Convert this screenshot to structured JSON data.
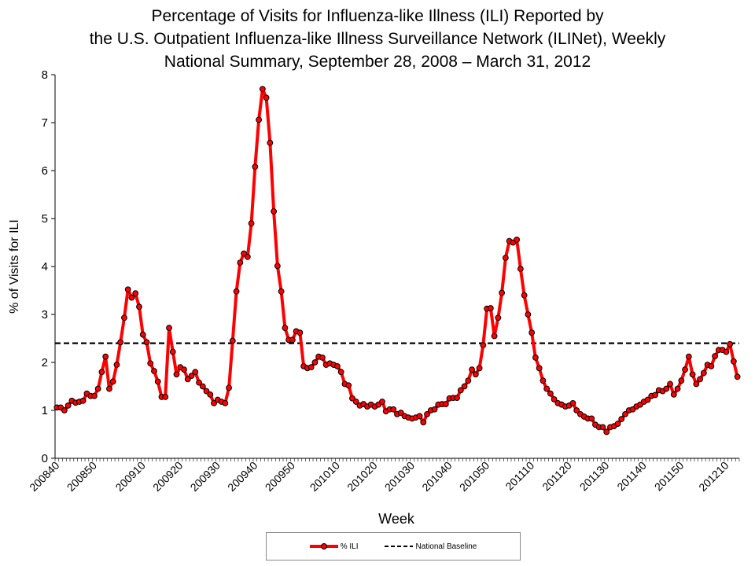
{
  "chart_data": {
    "type": "line",
    "title": [
      "Percentage of Visits for Influenza-like Illness (ILI) Reported by",
      "the U.S. Outpatient Influenza-like Illness Surveillance Network (ILINet), Weekly",
      "National Summary, September 28, 2008 – March 31, 2012"
    ],
    "xlabel": "Week",
    "ylabel": "% of Visits for ILI",
    "ylim": [
      0,
      8
    ],
    "yticks": [
      "0",
      "1",
      "2",
      "3",
      "4",
      "5",
      "6",
      "7",
      "8"
    ],
    "xtick_labels": [
      "200840",
      "200850",
      "200910",
      "200920",
      "200930",
      "200940",
      "200950",
      "201010",
      "201020",
      "201030",
      "201040",
      "201050",
      "201110",
      "201120",
      "201130",
      "201140",
      "201150",
      "201210"
    ],
    "grid": false,
    "legend_placement": "bottom",
    "weeks": [
      "200840",
      "200841",
      "200842",
      "200843",
      "200844",
      "200845",
      "200846",
      "200847",
      "200848",
      "200849",
      "200850",
      "200851",
      "200852",
      "200853",
      "200901",
      "200902",
      "200903",
      "200904",
      "200905",
      "200906",
      "200907",
      "200908",
      "200909",
      "200910",
      "200911",
      "200912",
      "200913",
      "200914",
      "200915",
      "200916",
      "200917",
      "200918",
      "200919",
      "200920",
      "200921",
      "200922",
      "200923",
      "200924",
      "200925",
      "200926",
      "200927",
      "200928",
      "200929",
      "200930",
      "200931",
      "200932",
      "200933",
      "200934",
      "200935",
      "200936",
      "200937",
      "200938",
      "200939",
      "200940",
      "200941",
      "200942",
      "200943",
      "200944",
      "200945",
      "200946",
      "200947",
      "200948",
      "200949",
      "200950",
      "200951",
      "200952",
      "201001",
      "201002",
      "201003",
      "201004",
      "201005",
      "201006",
      "201007",
      "201008",
      "201009",
      "201010",
      "201011",
      "201012",
      "201013",
      "201014",
      "201015",
      "201016",
      "201017",
      "201018",
      "201019",
      "201020",
      "201021",
      "201022",
      "201023",
      "201024",
      "201025",
      "201026",
      "201027",
      "201028",
      "201029",
      "201030",
      "201031",
      "201032",
      "201033",
      "201034",
      "201035",
      "201036",
      "201037",
      "201038",
      "201039",
      "201040",
      "201041",
      "201042",
      "201043",
      "201044",
      "201045",
      "201046",
      "201047",
      "201048",
      "201049",
      "201050",
      "201051",
      "201052",
      "201101",
      "201102",
      "201103",
      "201104",
      "201105",
      "201106",
      "201107",
      "201108",
      "201109",
      "201110",
      "201111",
      "201112",
      "201113",
      "201114",
      "201115",
      "201116",
      "201117",
      "201118",
      "201119",
      "201120",
      "201121",
      "201122",
      "201123",
      "201124",
      "201125",
      "201126",
      "201127",
      "201128",
      "201129",
      "201130",
      "201131",
      "201132",
      "201133",
      "201134",
      "201135",
      "201136",
      "201137",
      "201138",
      "201139",
      "201140",
      "201141",
      "201142",
      "201143",
      "201144",
      "201145",
      "201146",
      "201147",
      "201148",
      "201149",
      "201150",
      "201151",
      "201152",
      "201201",
      "201202",
      "201203",
      "201204",
      "201205",
      "201206",
      "201207",
      "201208",
      "201209",
      "201210",
      "201211",
      "201212",
      "201213"
    ],
    "series": [
      {
        "name": "% ILI",
        "color": "#ff0000",
        "marker_color": "#ff0000",
        "values": [
          1.06,
          1.06,
          1.0,
          1.1,
          1.2,
          1.16,
          1.18,
          1.2,
          1.35,
          1.3,
          1.3,
          1.45,
          1.8,
          2.12,
          1.45,
          1.6,
          1.95,
          2.42,
          2.93,
          3.52,
          3.35,
          3.44,
          3.16,
          2.58,
          2.42,
          1.98,
          1.82,
          1.6,
          1.28,
          1.28,
          2.72,
          2.22,
          1.75,
          1.9,
          1.85,
          1.65,
          1.72,
          1.8,
          1.58,
          1.5,
          1.4,
          1.33,
          1.15,
          1.22,
          1.18,
          1.15,
          1.47,
          2.45,
          3.48,
          4.08,
          4.27,
          4.2,
          4.9,
          6.08,
          7.06,
          7.7,
          7.52,
          6.58,
          5.15,
          4.01,
          3.48,
          2.72,
          2.47,
          2.47,
          2.65,
          2.62,
          1.92,
          1.88,
          1.9,
          2.0,
          2.12,
          2.1,
          1.95,
          1.98,
          1.95,
          1.92,
          1.8,
          1.55,
          1.52,
          1.25,
          1.18,
          1.1,
          1.13,
          1.08,
          1.12,
          1.08,
          1.12,
          1.18,
          0.98,
          1.02,
          1.02,
          0.92,
          0.95,
          0.88,
          0.85,
          0.83,
          0.85,
          0.88,
          0.75,
          0.92,
          1.0,
          1.02,
          1.12,
          1.13,
          1.13,
          1.25,
          1.26,
          1.26,
          1.42,
          1.5,
          1.62,
          1.85,
          1.75,
          1.88,
          2.36,
          3.12,
          3.13,
          2.55,
          2.93,
          3.45,
          4.18,
          4.53,
          4.5,
          4.56,
          3.95,
          3.4,
          3.0,
          2.62,
          2.1,
          1.88,
          1.62,
          1.45,
          1.35,
          1.23,
          1.15,
          1.12,
          1.08,
          1.1,
          1.15,
          1.0,
          0.92,
          0.87,
          0.83,
          0.83,
          0.7,
          0.65,
          0.65,
          0.55,
          0.65,
          0.67,
          0.72,
          0.82,
          0.92,
          1.0,
          1.02,
          1.08,
          1.12,
          1.18,
          1.22,
          1.3,
          1.32,
          1.42,
          1.4,
          1.45,
          1.55,
          1.33,
          1.45,
          1.62,
          1.85,
          2.12,
          1.75,
          1.55,
          1.65,
          1.78,
          1.95,
          1.92,
          2.13,
          2.26,
          2.26,
          2.22,
          2.38,
          2.02,
          1.7
        ]
      },
      {
        "name": "National Baseline",
        "color": "#000000",
        "value": 2.4,
        "style": "dashed"
      }
    ]
  }
}
